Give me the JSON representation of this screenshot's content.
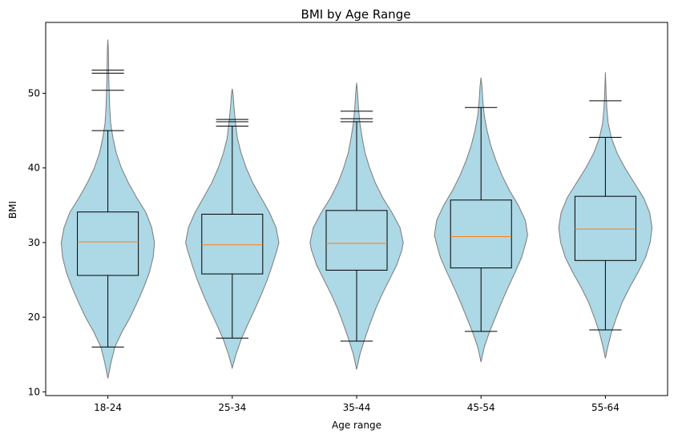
{
  "chart_data": {
    "type": "violin",
    "title": "BMI by Age Range",
    "xlabel": "Age range",
    "ylabel": "BMI",
    "ylim": [
      9.5,
      59.5
    ],
    "yticks": [
      10,
      20,
      30,
      40,
      50
    ],
    "categories": [
      "18-24",
      "25-34",
      "35-44",
      "45-54",
      "55-64"
    ],
    "colors": {
      "violin_fill": "#add8e6",
      "violin_edge": "#7a7a7a",
      "box_edge": "#000000",
      "median": "#ff7f0e"
    },
    "grid": false,
    "groups": [
      {
        "name": "18-24",
        "violin_min": 11.8,
        "violin_max": 57.2,
        "whisker_low": 16.0,
        "q1": 25.6,
        "median": 30.1,
        "q3": 34.1,
        "whisker_high": 45.0,
        "fliers": [
          50.4,
          52.7,
          53.1
        ],
        "density": [
          [
            11.8,
            0.0
          ],
          [
            14,
            0.07
          ],
          [
            16,
            0.15
          ],
          [
            18,
            0.3
          ],
          [
            20,
            0.48
          ],
          [
            22,
            0.63
          ],
          [
            24,
            0.77
          ],
          [
            26,
            0.89
          ],
          [
            28,
            0.97
          ],
          [
            30,
            1.0
          ],
          [
            32,
            0.94
          ],
          [
            34,
            0.82
          ],
          [
            36,
            0.62
          ],
          [
            38,
            0.44
          ],
          [
            40,
            0.29
          ],
          [
            42,
            0.18
          ],
          [
            44,
            0.11
          ],
          [
            46,
            0.06
          ],
          [
            48,
            0.04
          ],
          [
            50,
            0.03
          ],
          [
            52,
            0.02
          ],
          [
            54,
            0.015
          ],
          [
            56,
            0.01
          ],
          [
            57.2,
            0.0
          ]
        ]
      },
      {
        "name": "25-34",
        "violin_min": 13.2,
        "violin_max": 50.6,
        "whisker_low": 17.2,
        "q1": 25.8,
        "median": 29.7,
        "q3": 33.8,
        "whisker_high": 45.6,
        "fliers": [
          46.2,
          46.5
        ],
        "density": [
          [
            13.2,
            0.0
          ],
          [
            15,
            0.08
          ],
          [
            17,
            0.19
          ],
          [
            19,
            0.33
          ],
          [
            21,
            0.48
          ],
          [
            23,
            0.62
          ],
          [
            25,
            0.75
          ],
          [
            27,
            0.86
          ],
          [
            29,
            0.96
          ],
          [
            30,
            1.0
          ],
          [
            32,
            0.94
          ],
          [
            34,
            0.8
          ],
          [
            36,
            0.62
          ],
          [
            38,
            0.44
          ],
          [
            40,
            0.3
          ],
          [
            42,
            0.19
          ],
          [
            44,
            0.11
          ],
          [
            46,
            0.07
          ],
          [
            48,
            0.04
          ],
          [
            50,
            0.015
          ],
          [
            50.6,
            0.0
          ]
        ]
      },
      {
        "name": "35-44",
        "violin_min": 13.0,
        "violin_max": 51.4,
        "whisker_low": 16.8,
        "q1": 26.3,
        "median": 29.9,
        "q3": 34.3,
        "whisker_high": 46.2,
        "fliers": [
          46.6,
          47.6
        ],
        "density": [
          [
            13.0,
            0.0
          ],
          [
            15,
            0.07
          ],
          [
            17,
            0.17
          ],
          [
            19,
            0.28
          ],
          [
            21,
            0.4
          ],
          [
            23,
            0.54
          ],
          [
            25,
            0.7
          ],
          [
            27,
            0.86
          ],
          [
            29,
            0.97
          ],
          [
            30,
            1.0
          ],
          [
            32,
            0.93
          ],
          [
            34,
            0.76
          ],
          [
            36,
            0.56
          ],
          [
            38,
            0.4
          ],
          [
            40,
            0.28
          ],
          [
            42,
            0.18
          ],
          [
            44,
            0.12
          ],
          [
            46,
            0.07
          ],
          [
            48,
            0.04
          ],
          [
            50,
            0.02
          ],
          [
            51.4,
            0.0
          ]
        ]
      },
      {
        "name": "45-54",
        "violin_min": 14.0,
        "violin_max": 52.1,
        "whisker_low": 18.1,
        "q1": 26.6,
        "median": 30.8,
        "q3": 35.7,
        "whisker_high": 48.1,
        "fliers": [],
        "density": [
          [
            14.0,
            0.0
          ],
          [
            16,
            0.07
          ],
          [
            18,
            0.18
          ],
          [
            20,
            0.31
          ],
          [
            22,
            0.44
          ],
          [
            24,
            0.58
          ],
          [
            26,
            0.73
          ],
          [
            28,
            0.87
          ],
          [
            30,
            0.96
          ],
          [
            31,
            1.0
          ],
          [
            33,
            0.95
          ],
          [
            35,
            0.8
          ],
          [
            37,
            0.61
          ],
          [
            39,
            0.45
          ],
          [
            41,
            0.32
          ],
          [
            43,
            0.21
          ],
          [
            45,
            0.13
          ],
          [
            47,
            0.07
          ],
          [
            49,
            0.04
          ],
          [
            51,
            0.02
          ],
          [
            52.1,
            0.0
          ]
        ]
      },
      {
        "name": "55-64",
        "violin_min": 14.5,
        "violin_max": 52.8,
        "whisker_low": 18.3,
        "q1": 27.6,
        "median": 31.8,
        "q3": 36.2,
        "whisker_high": 44.1,
        "fliers": [
          49.0
        ],
        "density": [
          [
            14.5,
            0.0
          ],
          [
            16,
            0.05
          ],
          [
            18,
            0.13
          ],
          [
            20,
            0.24
          ],
          [
            22,
            0.36
          ],
          [
            24,
            0.52
          ],
          [
            26,
            0.7
          ],
          [
            28,
            0.86
          ],
          [
            30,
            0.96
          ],
          [
            32,
            1.0
          ],
          [
            34,
            0.95
          ],
          [
            36,
            0.82
          ],
          [
            38,
            0.62
          ],
          [
            40,
            0.42
          ],
          [
            42,
            0.25
          ],
          [
            44,
            0.13
          ],
          [
            46,
            0.06
          ],
          [
            48,
            0.03
          ],
          [
            50,
            0.015
          ],
          [
            52.8,
            0.0
          ]
        ]
      }
    ]
  }
}
